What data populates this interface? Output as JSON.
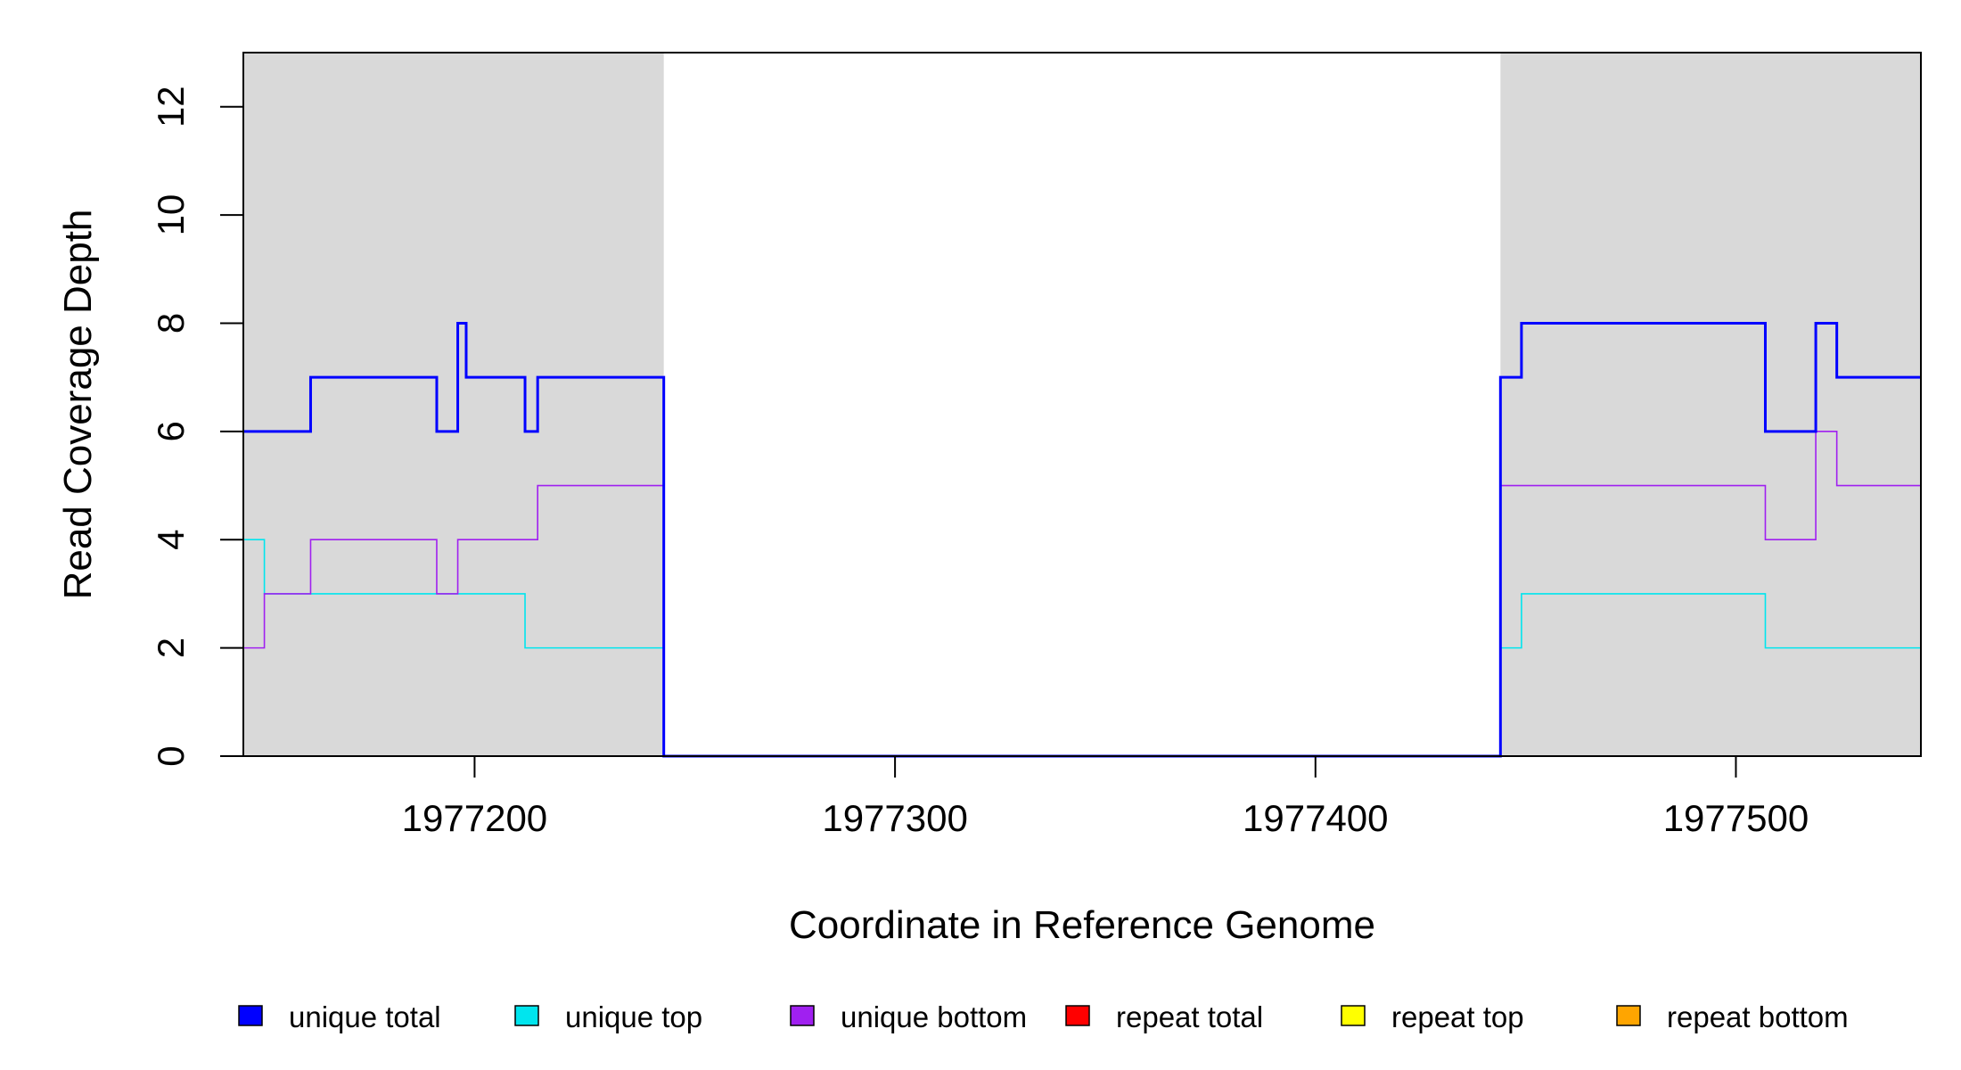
{
  "chart_data": {
    "type": "line",
    "step": true,
    "xlabel": "Coordinate in Reference Genome",
    "ylabel": "Read Coverage Depth",
    "xlim": [
      1977145,
      1977544
    ],
    "ylim": [
      0,
      13
    ],
    "x_ticks": [
      1977200,
      1977300,
      1977400,
      1977500
    ],
    "y_ticks": [
      0,
      2,
      4,
      6,
      8,
      10,
      12
    ],
    "shaded_regions": [
      [
        1977145,
        1977245
      ],
      [
        1977444,
        1977544
      ]
    ],
    "shade_color": "#d9d9d9",
    "legend_position": "bottom",
    "series": [
      {
        "name": "unique total",
        "color": "#0000ff",
        "points": [
          [
            1977145,
            6
          ],
          [
            1977161,
            7
          ],
          [
            1977191,
            6
          ],
          [
            1977196,
            8
          ],
          [
            1977198,
            7
          ],
          [
            1977212,
            6
          ],
          [
            1977215,
            7
          ],
          [
            1977245,
            0
          ],
          [
            1977444,
            7
          ],
          [
            1977449,
            8
          ],
          [
            1977507,
            6
          ],
          [
            1977519,
            8
          ],
          [
            1977524,
            7
          ],
          [
            1977544,
            7
          ]
        ]
      },
      {
        "name": "unique top",
        "color": "#00e5ee",
        "points": [
          [
            1977145,
            4
          ],
          [
            1977150,
            3
          ],
          [
            1977198,
            3
          ],
          [
            1977212,
            2
          ],
          [
            1977245,
            0
          ],
          [
            1977444,
            2
          ],
          [
            1977449,
            3
          ],
          [
            1977507,
            2
          ],
          [
            1977544,
            2
          ]
        ]
      },
      {
        "name": "unique bottom",
        "color": "#a020f0",
        "points": [
          [
            1977145,
            2
          ],
          [
            1977150,
            3
          ],
          [
            1977161,
            4
          ],
          [
            1977191,
            3
          ],
          [
            1977196,
            4
          ],
          [
            1977215,
            5
          ],
          [
            1977245,
            0
          ],
          [
            1977444,
            5
          ],
          [
            1977507,
            4
          ],
          [
            1977519,
            6
          ],
          [
            1977524,
            5
          ],
          [
            1977544,
            5
          ]
        ]
      },
      {
        "name": "repeat total",
        "color": "#ff0000",
        "points": [
          [
            1977145,
            0
          ],
          [
            1977544,
            0
          ]
        ]
      },
      {
        "name": "repeat top",
        "color": "#ffff00",
        "points": [
          [
            1977145,
            0
          ],
          [
            1977544,
            0
          ]
        ]
      },
      {
        "name": "repeat bottom",
        "color": "#ffa500",
        "points": [
          [
            1977145,
            0
          ],
          [
            1977544,
            0
          ]
        ]
      }
    ]
  }
}
